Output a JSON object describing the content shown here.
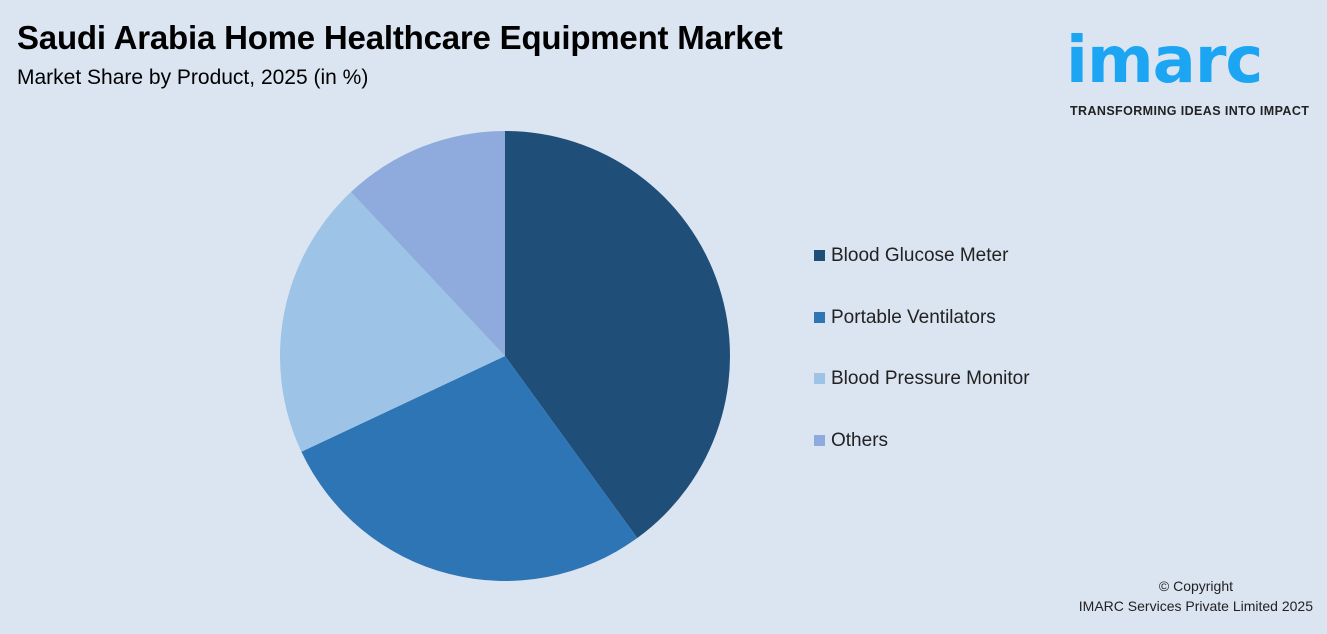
{
  "header": {
    "title": "Saudi Arabia Home Healthcare Equipment Market",
    "subtitle": "Market Share by Product, 2025 (in %)"
  },
  "logo": {
    "word": "imarc",
    "tagline": "TRANSFORMING IDEAS INTO IMPACT",
    "color": "#1ba5f2"
  },
  "chart_data": {
    "type": "pie",
    "title": "Saudi Arabia Home Healthcare Equipment Market",
    "subtitle": "Market Share by Product, 2025 (in %)",
    "legend_position": "right",
    "categories": [
      "Blood Glucose Meter",
      "Portable Ventilators",
      "Blood Pressure Monitor",
      "Others"
    ],
    "values": [
      40,
      28,
      20,
      12
    ],
    "colors": [
      "#1f4e79",
      "#2e75b6",
      "#9dc3e6",
      "#8faadc"
    ]
  },
  "footer": {
    "copyright": "© Copyright",
    "company": "IMARC Services Private Limited 2025"
  }
}
